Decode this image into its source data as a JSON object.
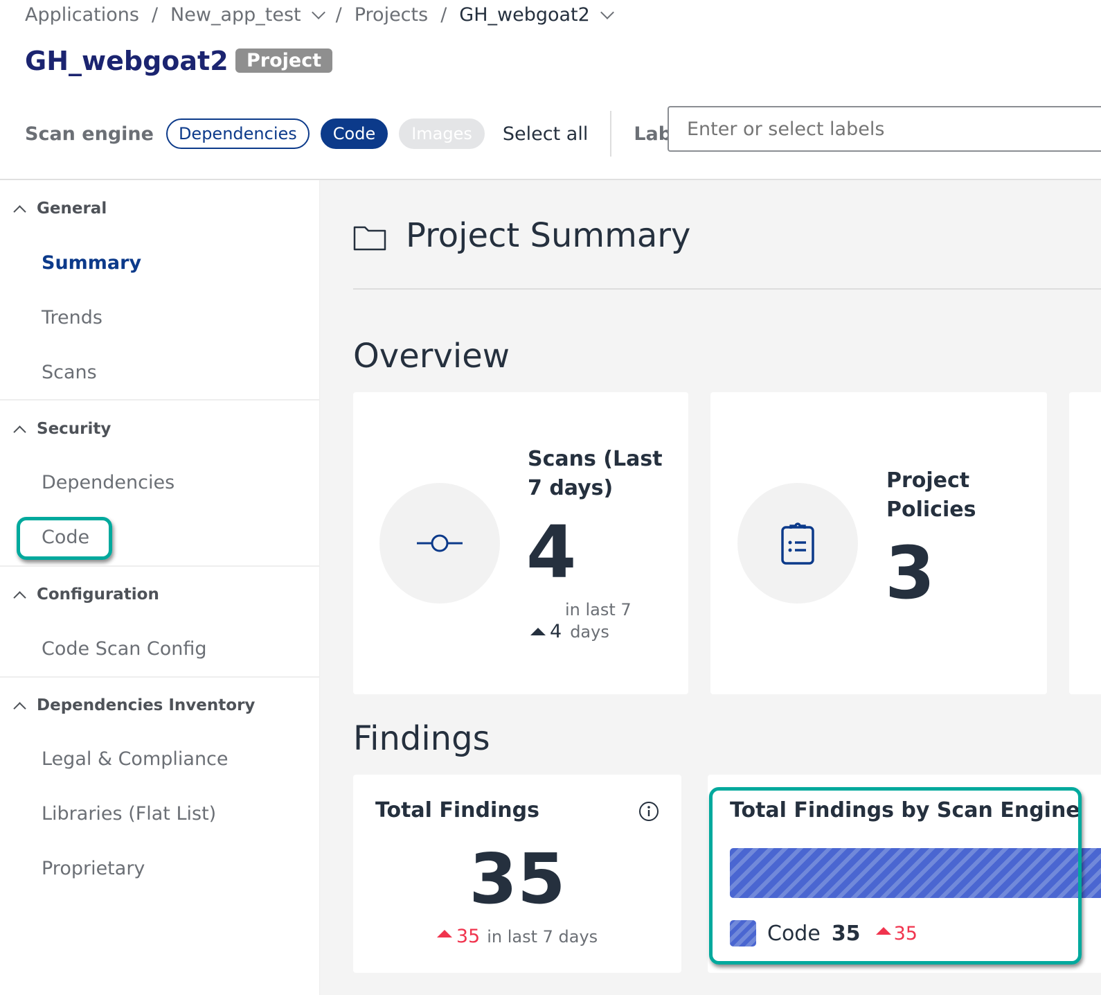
{
  "breadcrumb": {
    "items": [
      "Applications",
      "New_app_test",
      "Projects",
      "GH_webgoat2"
    ]
  },
  "header": {
    "title": "GH_webgoat2",
    "badge": "Project"
  },
  "filters": {
    "scan_engine_label": "Scan engine",
    "engines": [
      "Dependencies",
      "Code",
      "Images"
    ],
    "select_all": "Select all",
    "labels_label": "Labels",
    "labels_placeholder": "Enter or select labels"
  },
  "sidebar": {
    "groups": [
      {
        "title": "General",
        "items": [
          "Summary",
          "Trends",
          "Scans"
        ]
      },
      {
        "title": "Security",
        "items": [
          "Dependencies",
          "Code"
        ]
      },
      {
        "title": "Configuration",
        "items": [
          "Code Scan Config"
        ]
      },
      {
        "title": "Dependencies Inventory",
        "items": [
          "Legal & Compliance",
          "Libraries (Flat List)",
          "Proprietary"
        ]
      }
    ]
  },
  "main": {
    "page_title": "Project Summary",
    "overview_title": "Overview",
    "scans_card": {
      "title_line1": "Scans (Last",
      "title_line2": "7 days)",
      "value": "4",
      "delta": "4",
      "delta_label_top": "in last 7",
      "delta_label_bottom": "days"
    },
    "policies_card": {
      "title_line1": "Project",
      "title_line2": "Policies",
      "value": "3"
    },
    "findings_title": "Findings",
    "total_findings": {
      "title": "Total Findings",
      "value": "35",
      "delta": "35",
      "delta_label": "in last 7 days"
    },
    "by_engine": {
      "title": "Total Findings by Scan Engine",
      "legend_label": "Code",
      "legend_value": "35",
      "legend_delta": "35"
    }
  },
  "colors": {
    "accent": "#0c3a8a",
    "title": "#1b2470",
    "highlight": "#00a99d",
    "delta_up": "#f0344e",
    "bar": "#4a66d1"
  },
  "chart_data": {
    "type": "bar",
    "title": "Total Findings by Scan Engine",
    "categories": [
      "Code"
    ],
    "values": [
      35
    ]
  }
}
